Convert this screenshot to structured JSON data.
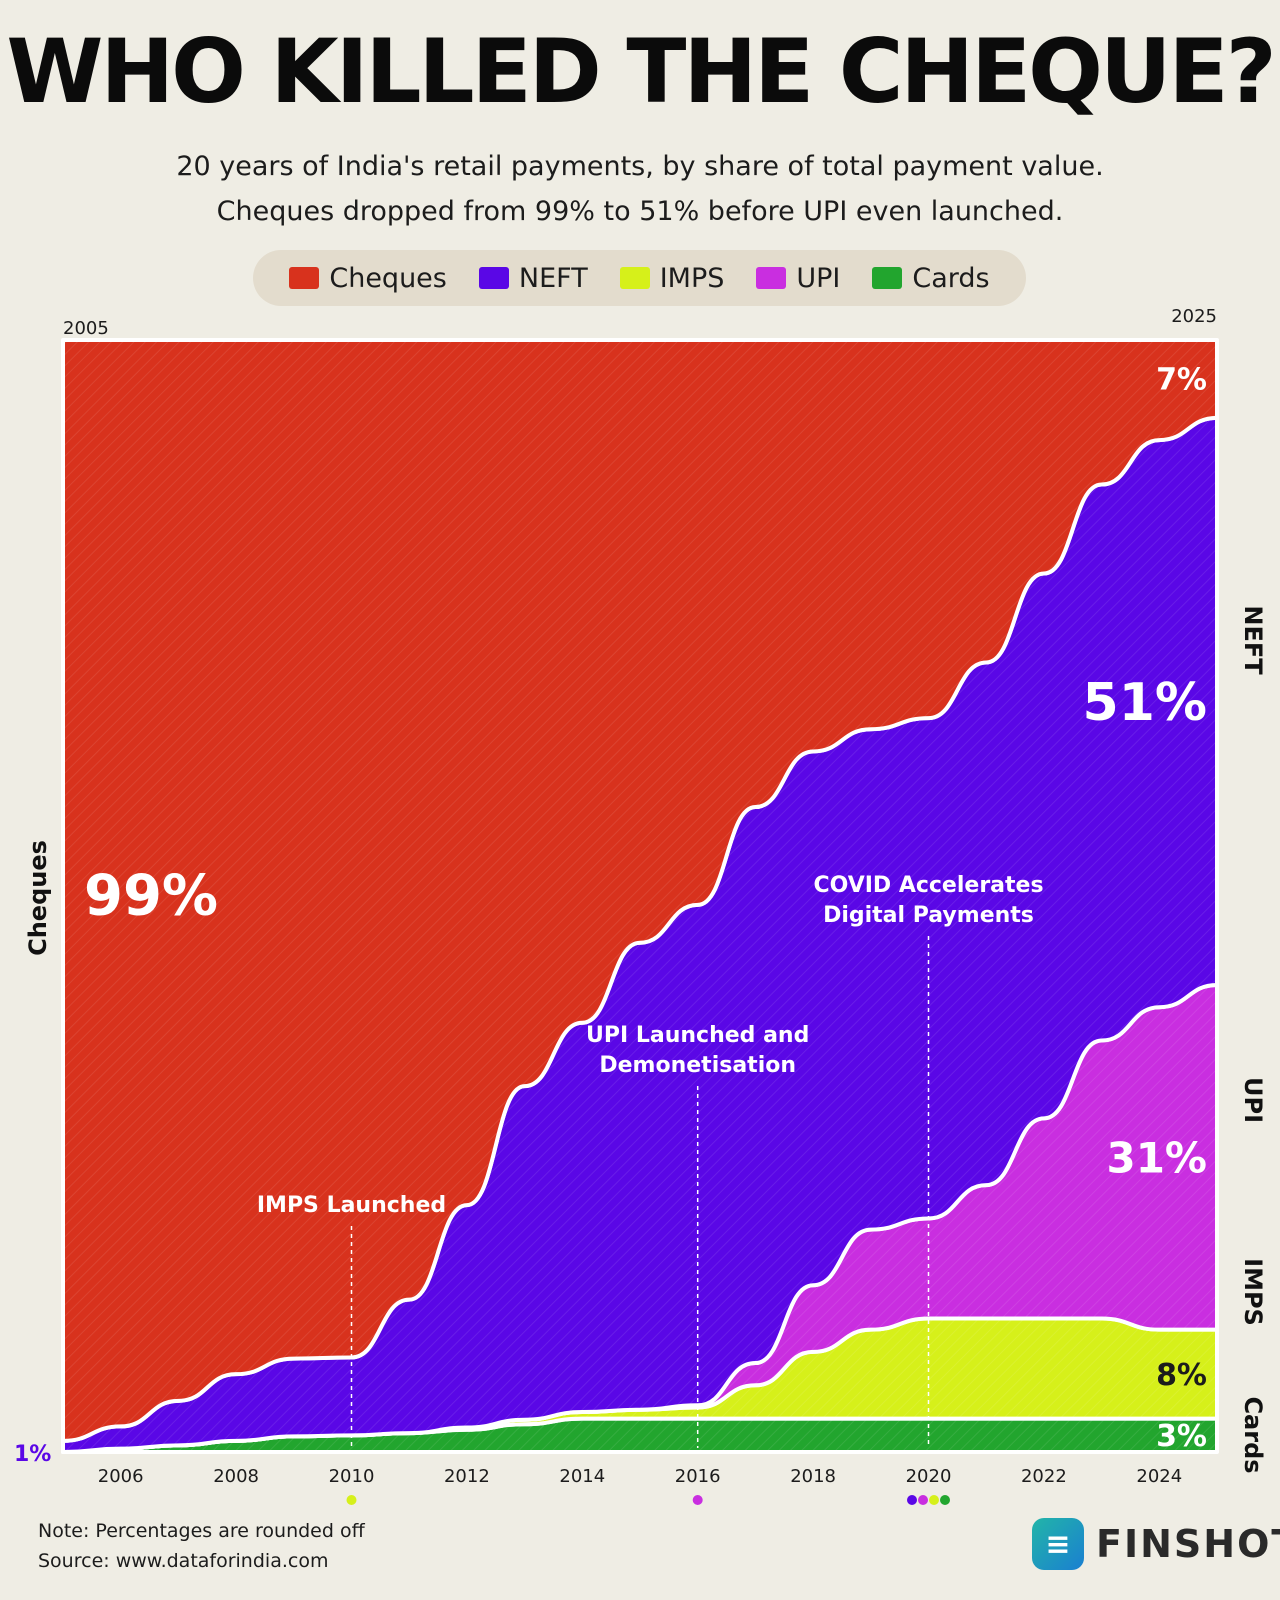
{
  "title": "WHO KILLED THE CHEQUE?",
  "subtitle_line1": "20 years of India's retail payments, by share of total payment value.",
  "subtitle_line2": "Cheques dropped from 99% to 51% before UPI even launched.",
  "legend": [
    {
      "label": "Cheques",
      "color": "#d8321d"
    },
    {
      "label": "NEFT",
      "color": "#5a07e6"
    },
    {
      "label": "IMPS",
      "color": "#d6f01a"
    },
    {
      "label": "UPI",
      "color": "#c92ee0"
    },
    {
      "label": "Cards",
      "color": "#22a52e"
    }
  ],
  "chart_data": {
    "type": "area",
    "x": [
      2005,
      2006,
      2007,
      2008,
      2009,
      2010,
      2011,
      2012,
      2013,
      2014,
      2015,
      2016,
      2017,
      2018,
      2019,
      2020,
      2021,
      2022,
      2023,
      2024,
      2025
    ],
    "series": [
      {
        "name": "Cards",
        "color": "#22a52e",
        "values": [
          0,
          0.3,
          0.6,
          1,
          1.4,
          1.5,
          1.7,
          2,
          2.5,
          3,
          3,
          3,
          3,
          3,
          3,
          3,
          3,
          3,
          3,
          3,
          3
        ]
      },
      {
        "name": "IMPS",
        "color": "#d6f01a",
        "values": [
          0,
          0,
          0,
          0,
          0,
          0,
          0,
          0.2,
          0.4,
          0.6,
          0.8,
          1,
          3,
          6,
          8,
          9,
          9,
          9,
          9,
          8,
          8
        ]
      },
      {
        "name": "UPI",
        "color": "#c92ee0",
        "values": [
          0,
          0,
          0,
          0,
          0,
          0,
          0,
          0,
          0,
          0,
          0,
          0.2,
          2,
          6,
          9,
          9,
          12,
          18,
          25,
          29,
          31
        ]
      },
      {
        "name": "NEFT",
        "color": "#5a07e6",
        "values": [
          1,
          2,
          4,
          6,
          7,
          7,
          12,
          20,
          30,
          35,
          42,
          45,
          50,
          48,
          45,
          45,
          47,
          49,
          50,
          51,
          51
        ]
      },
      {
        "name": "Cheques",
        "color": "#d8321d",
        "values": [
          99,
          97.7,
          95.4,
          93,
          91.6,
          91.5,
          86.3,
          77.8,
          67.1,
          61.4,
          54.2,
          50.8,
          42,
          37,
          35,
          34,
          29,
          21,
          13,
          9,
          7
        ]
      }
    ],
    "xlim": [
      2005,
      2025
    ],
    "ylim": [
      0,
      100
    ],
    "xticks": [
      2006,
      2008,
      2010,
      2012,
      2014,
      2016,
      2018,
      2020,
      2022,
      2024
    ],
    "start_label": "2005",
    "end_label": "2025",
    "left_axis_label": "Cheques",
    "left_start_values": [
      {
        "series": "Cheques",
        "label": "99%"
      },
      {
        "series": "NEFT",
        "label": "1%"
      }
    ],
    "end_values": [
      {
        "series": "NEFT",
        "label": "51%"
      },
      {
        "series": "UPI",
        "label": "31%"
      },
      {
        "series": "IMPS",
        "label": "8%"
      },
      {
        "series": "Cheques",
        "label": "7%"
      },
      {
        "series": "Cards",
        "label": "3%"
      }
    ],
    "right_labels": [
      "NEFT",
      "UPI",
      "IMPS",
      "Cards"
    ],
    "annotations": [
      {
        "x": 2010,
        "text": [
          "IMPS Launched"
        ],
        "dots": [
          "#d6f01a"
        ]
      },
      {
        "x": 2016,
        "text": [
          "UPI Launched and",
          "Demonetisation"
        ],
        "dots": [
          "#c92ee0"
        ]
      },
      {
        "x": 2020,
        "text": [
          "COVID Accelerates",
          "Digital Payments"
        ],
        "dots": [
          "#5a07e6",
          "#c92ee0",
          "#d6f01a",
          "#22a52e"
        ]
      }
    ],
    "grid": false
  },
  "footer": {
    "note": "Note: Percentages are rounded off",
    "source": "Source: www.dataforindia.com",
    "brand": "FINSHOTS"
  },
  "icons": {
    "brand_logo": "finshots-logo-icon"
  }
}
